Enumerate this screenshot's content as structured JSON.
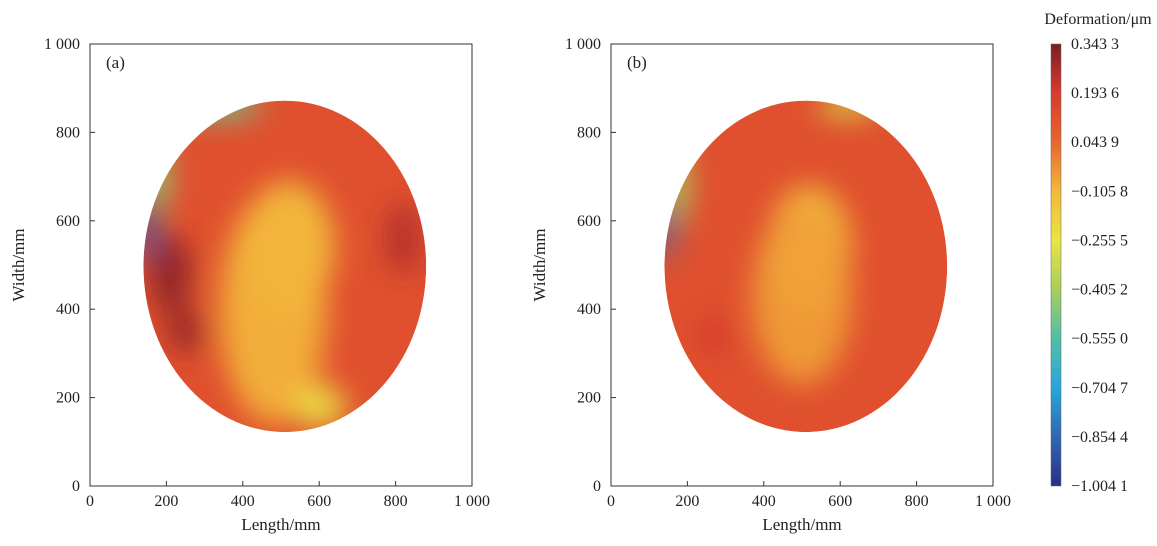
{
  "chart_data": [
    {
      "type": "heatmap",
      "panel_label": "(a)",
      "xlabel": "Length/mm",
      "ylabel": "Width/mm",
      "xlim": [
        0,
        1000
      ],
      "ylim": [
        0,
        1000
      ],
      "x_ticks": [
        0,
        200,
        400,
        600,
        800,
        1000
      ],
      "y_ticks": [
        0,
        200,
        400,
        600,
        800,
        1000
      ],
      "x_tick_labels": [
        "0",
        "200",
        "400",
        "600",
        "800",
        "1 000"
      ],
      "y_tick_labels": [
        "0",
        "200",
        "400",
        "600",
        "800",
        "1 000"
      ],
      "region": {
        "shape": "ellipse",
        "center": [
          510,
          497
        ],
        "radius_x": 370,
        "radius_y": 375
      },
      "base_value": 0.12,
      "features": [
        {
          "x": 520,
          "y": 540,
          "sx": 120,
          "sy": 150,
          "value": -0.14
        },
        {
          "x": 480,
          "y": 400,
          "sx": 140,
          "sy": 260,
          "value": -0.1
        },
        {
          "x": 600,
          "y": 180,
          "sx": 70,
          "sy": 50,
          "value": -0.25
        },
        {
          "x": 210,
          "y": 480,
          "sx": 55,
          "sy": 90,
          "value": 0.32
        },
        {
          "x": 250,
          "y": 350,
          "sx": 50,
          "sy": 50,
          "value": 0.3
        },
        {
          "x": 820,
          "y": 560,
          "sx": 45,
          "sy": 80,
          "value": 0.26
        },
        {
          "x": 170,
          "y": 700,
          "sx": 40,
          "sy": 80,
          "value": -0.45
        },
        {
          "x": 150,
          "y": 580,
          "sx": 25,
          "sy": 70,
          "value": -0.9
        },
        {
          "x": 330,
          "y": 860,
          "sx": 120,
          "sy": 30,
          "value": -0.5
        }
      ]
    },
    {
      "type": "heatmap",
      "panel_label": "(b)",
      "xlabel": "Length/mm",
      "ylabel": "Width/mm",
      "xlim": [
        0,
        1000
      ],
      "ylim": [
        0,
        1000
      ],
      "x_ticks": [
        0,
        200,
        400,
        600,
        800,
        1000
      ],
      "y_ticks": [
        0,
        200,
        400,
        600,
        800,
        1000
      ],
      "x_tick_labels": [
        "0",
        "200",
        "400",
        "600",
        "800",
        "1 000"
      ],
      "y_tick_labels": [
        "0",
        "200",
        "400",
        "600",
        "800",
        "1 000"
      ],
      "region": {
        "shape": "ellipse",
        "center": [
          510,
          497
        ],
        "radius_x": 370,
        "radius_y": 375
      },
      "base_value": 0.12,
      "features": [
        {
          "x": 520,
          "y": 540,
          "sx": 110,
          "sy": 140,
          "value": -0.12
        },
        {
          "x": 500,
          "y": 430,
          "sx": 130,
          "sy": 200,
          "value": -0.06
        },
        {
          "x": 270,
          "y": 340,
          "sx": 45,
          "sy": 45,
          "value": 0.2
        },
        {
          "x": 170,
          "y": 680,
          "sx": 35,
          "sy": 90,
          "value": -0.4
        },
        {
          "x": 145,
          "y": 580,
          "sx": 20,
          "sy": 70,
          "value": -0.85
        },
        {
          "x": 620,
          "y": 860,
          "sx": 80,
          "sy": 25,
          "value": -0.3
        }
      ]
    }
  ],
  "colorbar": {
    "title": "Deformation/μm",
    "max": 0.3433,
    "min": -1.0041,
    "tick_labels": [
      "0.343 3",
      "0.193 6",
      "0.043 9",
      "−0.105 8",
      "−0.255 5",
      "−0.405 2",
      "−0.555 0",
      "−0.704 7",
      "−0.854 4",
      "−1.004 1"
    ],
    "colormap": [
      "#2b2f87",
      "#2f68b5",
      "#27a6dd",
      "#55bda6",
      "#a6cf5c",
      "#e9e444",
      "#f3b83b",
      "#e8662f",
      "#d93a2e",
      "#7a1f24"
    ]
  }
}
